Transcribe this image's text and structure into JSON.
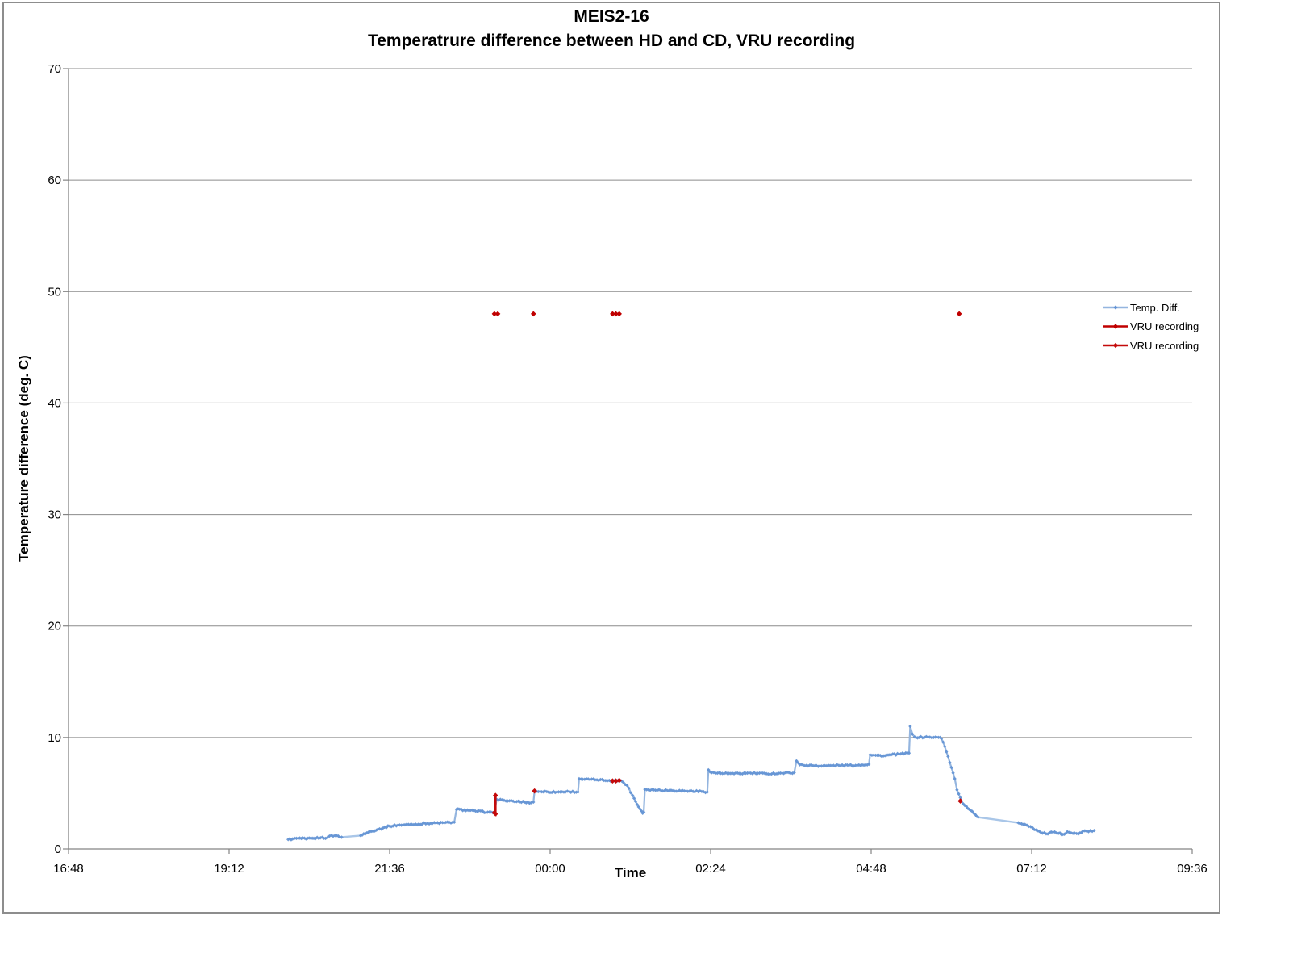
{
  "window": {
    "background": "#ffffff",
    "frame_border_color": "#8d8d8d"
  },
  "chart_data": {
    "type": "line",
    "title": "MEIS2-16",
    "subtitle": "Temperatrure difference between HD and CD, VRU recording",
    "xlabel": "Time",
    "ylabel": "Temperature difference (deg. C)",
    "x_ticks": [
      "16:48",
      "19:12",
      "21:36",
      "00:00",
      "02:24",
      "04:48",
      "07:12",
      "09:36"
    ],
    "x_axis_start_minutes": 1008,
    "x_axis_span_minutes": 1008,
    "y_ticks": [
      0,
      10,
      20,
      30,
      40,
      50,
      60,
      70
    ],
    "ylim": [
      0,
      70
    ],
    "grid": "horizontal",
    "legend_position": "right",
    "axis_color": "#848484",
    "gridline_color": "#8c8c8c",
    "series": [
      {
        "name": "Temp. Diff.",
        "type": "line",
        "line_color": "#94B5DF",
        "gap_line_color": "#A9C6E8",
        "marker_color": "#6292D4",
        "points": [
          [
            "20:05",
            0.85
          ],
          [
            "20:09",
            0.9
          ],
          [
            "20:14",
            0.95
          ],
          [
            "20:21",
            0.9
          ],
          [
            "20:28",
            0.95
          ],
          [
            "20:34",
            1.0
          ],
          [
            "20:40",
            1.0
          ],
          [
            "20:42",
            1.15
          ],
          [
            "20:47",
            1.2
          ],
          [
            "20:50",
            1.15
          ],
          [
            "20:53",
            1.05
          ],
          [
            "21:10",
            1.2
          ],
          [
            "21:17",
            1.5
          ],
          [
            "21:27",
            1.8
          ],
          [
            "21:36",
            2.05
          ],
          [
            "21:45",
            2.15
          ],
          [
            "21:56",
            2.2
          ],
          [
            "22:10",
            2.3
          ],
          [
            "22:25",
            2.35
          ],
          [
            "22:34",
            2.4
          ],
          [
            "22:36",
            3.55
          ],
          [
            "22:43",
            3.5
          ],
          [
            "22:53",
            3.4
          ],
          [
            "23:04",
            3.3
          ],
          [
            "23:10",
            3.2
          ],
          [
            "23:12",
            4.45
          ],
          [
            "23:17",
            4.4
          ],
          [
            "23:22",
            4.3
          ],
          [
            "23:30",
            4.25
          ],
          [
            "23:37",
            4.2
          ],
          [
            "23:43",
            4.15
          ],
          [
            "23:45",
            4.2
          ],
          [
            "23:46",
            5.15
          ],
          [
            "23:51",
            5.15
          ],
          [
            "00:06",
            5.1
          ],
          [
            "00:17",
            5.15
          ],
          [
            "00:25",
            5.1
          ],
          [
            "00:26",
            6.3
          ],
          [
            "00:31",
            6.25
          ],
          [
            "00:42",
            6.2
          ],
          [
            "00:53",
            6.15
          ],
          [
            "00:56",
            6.1
          ],
          [
            "01:02",
            6.15
          ],
          [
            "01:04",
            6.1
          ],
          [
            "01:09",
            5.7
          ],
          [
            "01:14",
            4.8
          ],
          [
            "01:18",
            4.0
          ],
          [
            "01:22",
            3.4
          ],
          [
            "01:23",
            3.2
          ],
          [
            "01:24",
            3.3
          ],
          [
            "01:25",
            5.35
          ],
          [
            "01:33",
            5.3
          ],
          [
            "01:47",
            5.25
          ],
          [
            "02:02",
            5.2
          ],
          [
            "02:16",
            5.15
          ],
          [
            "02:21",
            5.1
          ],
          [
            "02:22",
            7.1
          ],
          [
            "02:25",
            6.85
          ],
          [
            "02:30",
            6.8
          ],
          [
            "02:45",
            6.75
          ],
          [
            "03:00",
            6.8
          ],
          [
            "03:14",
            6.75
          ],
          [
            "03:28",
            6.8
          ],
          [
            "03:39",
            6.85
          ],
          [
            "03:41",
            7.9
          ],
          [
            "03:44",
            7.55
          ],
          [
            "03:50",
            7.5
          ],
          [
            "04:05",
            7.45
          ],
          [
            "04:19",
            7.5
          ],
          [
            "04:34",
            7.5
          ],
          [
            "04:46",
            7.6
          ],
          [
            "04:47",
            8.45
          ],
          [
            "04:52",
            8.4
          ],
          [
            "04:59",
            8.35
          ],
          [
            "05:06",
            8.45
          ],
          [
            "05:13",
            8.5
          ],
          [
            "05:22",
            8.6
          ],
          [
            "05:23",
            11.0
          ],
          [
            "05:25",
            10.3
          ],
          [
            "05:27",
            10.05
          ],
          [
            "05:31",
            10.0
          ],
          [
            "05:39",
            10.05
          ],
          [
            "05:44",
            10.0
          ],
          [
            "05:50",
            10.0
          ],
          [
            "05:51",
            9.9
          ],
          [
            "05:54",
            9.2
          ],
          [
            "05:57",
            8.3
          ],
          [
            "06:00",
            7.3
          ],
          [
            "06:03",
            6.3
          ],
          [
            "06:05",
            5.3
          ],
          [
            "06:08",
            4.6
          ],
          [
            "06:09",
            4.3
          ],
          [
            "06:12",
            3.9
          ],
          [
            "06:16",
            3.55
          ],
          [
            "06:20",
            3.2
          ],
          [
            "06:24",
            2.85
          ],
          [
            "07:00",
            2.35
          ],
          [
            "07:06",
            2.2
          ],
          [
            "07:11",
            2.0
          ],
          [
            "07:16",
            1.7
          ],
          [
            "07:20",
            1.5
          ],
          [
            "07:25",
            1.35
          ],
          [
            "07:31",
            1.5
          ],
          [
            "07:36",
            1.4
          ],
          [
            "07:40",
            1.3
          ],
          [
            "07:44",
            1.55
          ],
          [
            "07:49",
            1.4
          ],
          [
            "07:54",
            1.35
          ],
          [
            "07:58",
            1.6
          ],
          [
            "08:03",
            1.55
          ],
          [
            "08:08",
            1.65
          ]
        ]
      },
      {
        "name": "VRU recording",
        "type": "scatter",
        "color": "#C00000",
        "groups": [
          [
            [
              "23:10",
              48
            ],
            [
              "23:13",
              48
            ]
          ],
          [
            [
              "23:45",
              48
            ]
          ],
          [
            [
              "00:56",
              48
            ],
            [
              "00:59",
              48
            ],
            [
              "01:02",
              48
            ]
          ],
          [
            [
              "06:07",
              48
            ]
          ]
        ]
      },
      {
        "name": "VRU recording",
        "type": "scatter",
        "color": "#C40A0A",
        "groups": [
          [
            [
              "23:10",
              3.25
            ],
            [
              "23:11",
              3.15
            ],
            [
              "23:11",
              4.8
            ]
          ],
          [
            [
              "23:46",
              5.2
            ]
          ],
          [
            [
              "00:56",
              6.1
            ],
            [
              "00:59",
              6.1
            ],
            [
              "01:02",
              6.15
            ]
          ],
          [
            [
              "06:08",
              4.3
            ]
          ]
        ]
      }
    ]
  }
}
